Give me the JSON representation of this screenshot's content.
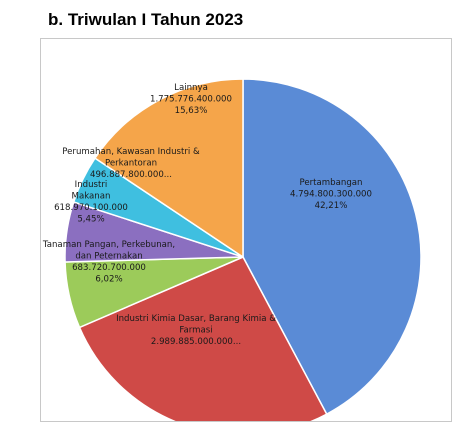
{
  "chart_data": {
    "type": "pie",
    "title": "b. Triwulan I Tahun 2023",
    "slices": [
      {
        "label": "Pertambangan",
        "value_text": "4.794.800.300.000",
        "percent_text": "42,21%",
        "percent": 42.21,
        "color": "#5a8bd6"
      },
      {
        "label": "Industri Kimia Dasar, Barang Kimia & Farmasi",
        "value_text": "2.989.885.000.000...",
        "percent_text": "",
        "percent": 26.32,
        "color": "#cf4a47"
      },
      {
        "label": "Tanaman Pangan, Perkebunan, dan Peternakan",
        "value_text": "683.720.700.000",
        "percent_text": "6,02%",
        "percent": 6.02,
        "color": "#9ccb5a"
      },
      {
        "label": "Industri Makanan",
        "value_text": "618.970.100.000",
        "percent_text": "5,45%",
        "percent": 5.45,
        "color": "#8b6fc0"
      },
      {
        "label": "Perumahan, Kawasan Industri & Perkantoran",
        "value_text": "496.887.800.000...",
        "percent_text": "",
        "percent": 4.37,
        "color": "#3fbfe0"
      },
      {
        "label": "Lainnya",
        "value_text": "1.775.776.400.000",
        "percent_text": "15,63%",
        "percent": 15.63,
        "color": "#f5a54a"
      }
    ]
  }
}
